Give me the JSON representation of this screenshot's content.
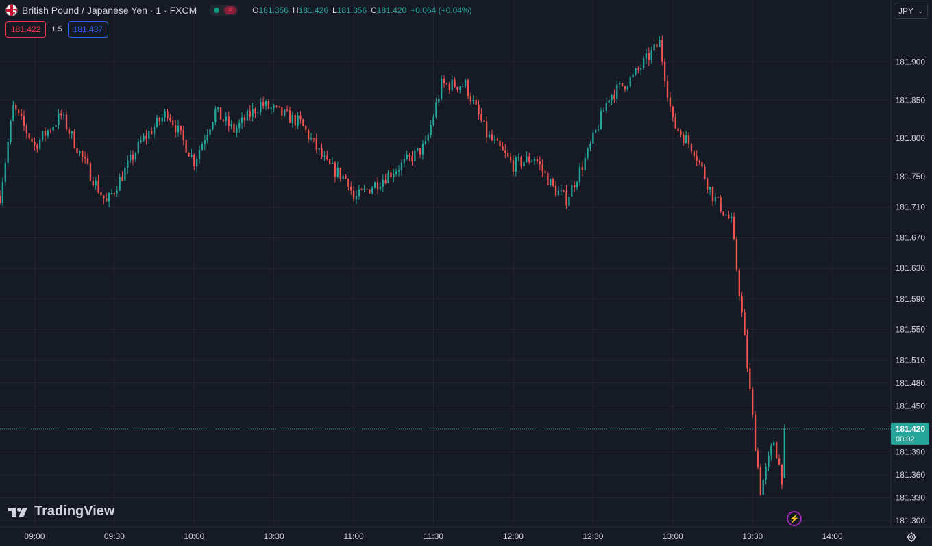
{
  "header": {
    "title": "British Pound / Japanese Yen · 1 · FXCM",
    "ohlc": [
      {
        "label": "O",
        "value": "181.356"
      },
      {
        "label": "H",
        "value": "181.426"
      },
      {
        "label": "L",
        "value": "181.356"
      },
      {
        "label": "C",
        "value": "181.420"
      }
    ],
    "change": "+0.064 (+0.04%)",
    "sell_price": "181.422",
    "spread": "1.5",
    "buy_price": "181.437",
    "currency": "JPY",
    "market_status_icon": "market-closed-icon"
  },
  "branding": {
    "logo_text": "TradingView"
  },
  "last_price": {
    "value": "181.420",
    "countdown": "00:02"
  },
  "colors": {
    "background": "#161a25",
    "grid": "#232632",
    "up": "#26a69a",
    "down": "#ef5350",
    "axis_text": "#d1d4dc",
    "last_price_bg": "#26a69a"
  },
  "chart_data": {
    "type": "candlestick",
    "title": "British Pound / Japanese Yen · 1 · FXCM",
    "xlabel": "",
    "ylabel": "",
    "x_ticks": [
      "09:00",
      "09:30",
      "10:00",
      "10:30",
      "11:00",
      "11:30",
      "12:00",
      "12:30",
      "13:00",
      "13:30",
      "14:00"
    ],
    "y_ticks": [
      181.9,
      181.85,
      181.8,
      181.75,
      181.71,
      181.67,
      181.63,
      181.59,
      181.55,
      181.51,
      181.48,
      181.45,
      181.39,
      181.36,
      181.33,
      181.3
    ],
    "y_tick_labels": [
      "181.900",
      "181.850",
      "181.800",
      "181.750",
      "181.710",
      "181.670",
      "181.630",
      "181.590",
      "181.550",
      "181.510",
      "181.480",
      "181.450",
      "181.390",
      "181.360",
      "181.330",
      "181.300"
    ],
    "ylim": [
      181.292,
      181.954
    ],
    "x_start_time": "08:47",
    "x_end_time": "14:22",
    "interval_minutes": 1,
    "grid": true,
    "last_price": 181.42,
    "key_points": [
      {
        "time": "08:47",
        "price": 181.725
      },
      {
        "time": "08:52",
        "price": 181.84
      },
      {
        "time": "09:00",
        "price": 181.79
      },
      {
        "time": "09:10",
        "price": 181.83
      },
      {
        "time": "09:20",
        "price": 181.76
      },
      {
        "time": "09:27",
        "price": 181.715
      },
      {
        "time": "09:40",
        "price": 181.795
      },
      {
        "time": "09:50",
        "price": 181.835
      },
      {
        "time": "10:00",
        "price": 181.77
      },
      {
        "time": "10:08",
        "price": 181.835
      },
      {
        "time": "10:15",
        "price": 181.81
      },
      {
        "time": "10:25",
        "price": 181.845
      },
      {
        "time": "10:40",
        "price": 181.82
      },
      {
        "time": "10:50",
        "price": 181.765
      },
      {
        "time": "10:58",
        "price": 181.745
      },
      {
        "time": "11:00",
        "price": 181.72
      },
      {
        "time": "11:10",
        "price": 181.745
      },
      {
        "time": "11:20",
        "price": 181.77
      },
      {
        "time": "11:27",
        "price": 181.79
      },
      {
        "time": "11:33",
        "price": 181.87
      },
      {
        "time": "11:42",
        "price": 181.87
      },
      {
        "time": "11:50",
        "price": 181.805
      },
      {
        "time": "12:00",
        "price": 181.765
      },
      {
        "time": "12:08",
        "price": 181.775
      },
      {
        "time": "12:15",
        "price": 181.735
      },
      {
        "time": "12:20",
        "price": 181.72
      },
      {
        "time": "12:28",
        "price": 181.78
      },
      {
        "time": "12:36",
        "price": 181.855
      },
      {
        "time": "12:45",
        "price": 181.88
      },
      {
        "time": "12:55",
        "price": 181.925
      },
      {
        "time": "13:00",
        "price": 181.82
      },
      {
        "time": "13:08",
        "price": 181.785
      },
      {
        "time": "13:15",
        "price": 181.725
      },
      {
        "time": "13:22",
        "price": 181.69
      },
      {
        "time": "13:26",
        "price": 181.57
      },
      {
        "time": "13:31",
        "price": 181.4
      },
      {
        "time": "13:33",
        "price": 181.34
      },
      {
        "time": "13:38",
        "price": 181.405
      },
      {
        "time": "13:41",
        "price": 181.356
      }
    ],
    "last_candle": {
      "time": "13:42",
      "open": 181.356,
      "high": 181.426,
      "low": 181.356,
      "close": 181.42
    }
  }
}
